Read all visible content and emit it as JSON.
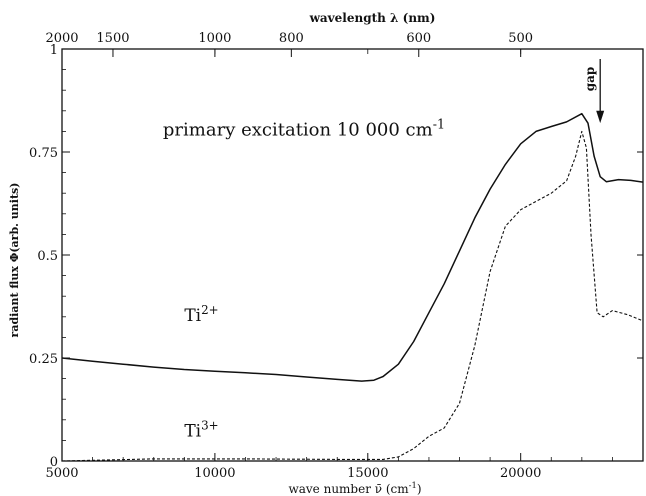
{
  "chart_data": {
    "type": "line",
    "xlabel": "wave number ν̄ (cm",
    "xlabel_sup": "-1",
    "xlabel_tail": ")",
    "ylabel": "radiant flux Φ(arb. units)",
    "top_axis_label": "wavelength λ (nm)",
    "xlim": [
      5000,
      24000
    ],
    "ylim": [
      0,
      1
    ],
    "x_ticks": [
      5000,
      10000,
      15000,
      20000
    ],
    "x_tick_labels": [
      "5000",
      "10000",
      "15000",
      "20000"
    ],
    "y_ticks": [
      0,
      0.25,
      0.5,
      0.75,
      1
    ],
    "y_tick_labels": [
      "0",
      "0.25",
      "0.5",
      "0.75",
      "1"
    ],
    "top_ticks_nm": [
      2000,
      1500,
      1000,
      800,
      600,
      500
    ],
    "top_tick_labels": [
      "2000",
      "1500",
      "1000",
      "800",
      "600",
      "500"
    ],
    "annotation": {
      "text": "primary excitation 10 000 cm",
      "sup": "-1"
    },
    "gap_marker": {
      "label": "gap",
      "x": 22600
    },
    "series": [
      {
        "name": "Ti",
        "name_sup": "2+",
        "style": "solid",
        "color": "#111111",
        "points": [
          [
            5000,
            0.25
          ],
          [
            6000,
            0.242
          ],
          [
            7000,
            0.235
          ],
          [
            8000,
            0.228
          ],
          [
            9000,
            0.222
          ],
          [
            10000,
            0.218
          ],
          [
            11000,
            0.214
          ],
          [
            12000,
            0.21
          ],
          [
            13000,
            0.204
          ],
          [
            14000,
            0.198
          ],
          [
            14800,
            0.194
          ],
          [
            15200,
            0.196
          ],
          [
            15500,
            0.205
          ],
          [
            16000,
            0.235
          ],
          [
            16500,
            0.29
          ],
          [
            17000,
            0.36
          ],
          [
            17500,
            0.43
          ],
          [
            18000,
            0.51
          ],
          [
            18500,
            0.59
          ],
          [
            19000,
            0.66
          ],
          [
            19500,
            0.72
          ],
          [
            20000,
            0.77
          ],
          [
            20500,
            0.8
          ],
          [
            21000,
            0.812
          ],
          [
            21500,
            0.823
          ],
          [
            22000,
            0.843
          ],
          [
            22200,
            0.82
          ],
          [
            22400,
            0.74
          ],
          [
            22600,
            0.69
          ],
          [
            22800,
            0.678
          ],
          [
            23200,
            0.683
          ],
          [
            23600,
            0.681
          ],
          [
            24000,
            0.677
          ]
        ]
      },
      {
        "name": "Ti",
        "name_sup": "3+",
        "style": "dashed",
        "color": "#111111",
        "points": [
          [
            5000,
            0.0
          ],
          [
            8000,
            0.005
          ],
          [
            11000,
            0.005
          ],
          [
            14000,
            0.004
          ],
          [
            15500,
            0.004
          ],
          [
            16000,
            0.01
          ],
          [
            16500,
            0.03
          ],
          [
            17000,
            0.06
          ],
          [
            17500,
            0.08
          ],
          [
            18000,
            0.14
          ],
          [
            18500,
            0.28
          ],
          [
            19000,
            0.46
          ],
          [
            19500,
            0.57
          ],
          [
            20000,
            0.61
          ],
          [
            20500,
            0.63
          ],
          [
            21000,
            0.65
          ],
          [
            21500,
            0.68
          ],
          [
            21800,
            0.74
          ],
          [
            22000,
            0.8
          ],
          [
            22150,
            0.76
          ],
          [
            22300,
            0.55
          ],
          [
            22500,
            0.36
          ],
          [
            22700,
            0.35
          ],
          [
            23000,
            0.365
          ],
          [
            23500,
            0.355
          ],
          [
            24000,
            0.34
          ]
        ]
      }
    ]
  }
}
